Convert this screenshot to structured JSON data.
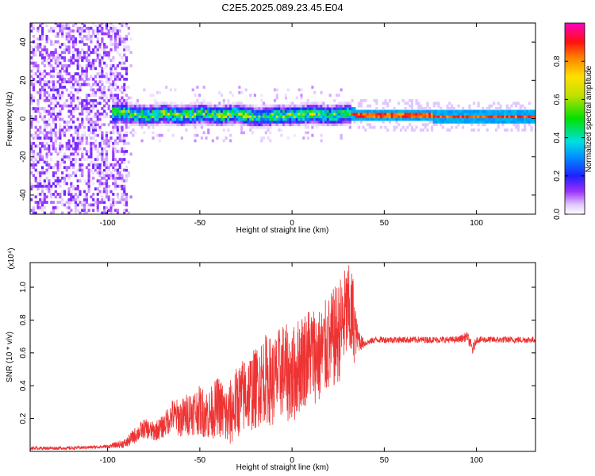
{
  "title": "C2E5.2025.089.23.45.E04",
  "chart_data": [
    {
      "type": "heatmap",
      "xlabel": "Height of straight line (km)",
      "ylabel": "Frequency (Hz)",
      "xlim": [
        -142,
        132
      ],
      "ylim": [
        -50,
        50
      ],
      "xticks": [
        "-100",
        "-50",
        "0",
        "50",
        "100"
      ],
      "xtick_values": [
        -100,
        -50,
        0,
        50,
        100
      ],
      "yticks": [
        "-40",
        "-20",
        "0",
        "20",
        "40"
      ],
      "ytick_values": [
        -40,
        -20,
        0,
        20,
        40
      ],
      "grid": false,
      "colorbar": {
        "label": "Normalized spectral amplitude",
        "ticks": [
          "0.0",
          "0.2",
          "0.4",
          "0.6",
          "0.8"
        ],
        "tick_values": [
          0.0,
          0.2,
          0.4,
          0.6,
          0.8
        ],
        "range": [
          0,
          1
        ],
        "colormap": "rainbow (violet to magenta)"
      },
      "regions": [
        {
          "x_range": [
            -142,
            -90
          ],
          "freq_range": [
            -50,
            50
          ],
          "amplitude": [
            0.0,
            0.15
          ],
          "description_values": "broadband noise"
        },
        {
          "x_range": [
            -98,
            30
          ],
          "freq_range": [
            -8,
            8
          ],
          "amplitude": [
            0.1,
            0.6
          ]
        },
        {
          "x_range": [
            30,
            132
          ],
          "freq_range": [
            -2,
            2
          ],
          "amplitude": [
            0.5,
            1.0
          ]
        }
      ],
      "ridge_x": [
        -100,
        -90,
        -80,
        -70,
        -60,
        -50,
        -40,
        -30,
        -20,
        -10,
        0,
        10,
        20,
        30,
        40,
        60,
        80,
        100,
        132
      ],
      "ridge_freq": [
        3,
        2,
        1,
        2,
        1,
        2,
        1,
        2,
        0,
        1,
        1,
        2,
        1,
        2,
        1,
        1,
        0.5,
        0.5,
        0.5
      ]
    },
    {
      "type": "line",
      "xlabel": "Height of straight line (km)",
      "ylabel": "SNR (10 * v/v)",
      "multiplier": "(x10⁴)",
      "xlim": [
        -142,
        132
      ],
      "ylim": [
        0,
        1.15
      ],
      "xticks": [
        "-100",
        "-50",
        "0",
        "50",
        "100"
      ],
      "xtick_values": [
        -100,
        -50,
        0,
        50,
        100
      ],
      "yticks": [
        "0.2",
        "0.4",
        "0.6",
        "0.8",
        "1.0"
      ],
      "ytick_values": [
        0.2,
        0.4,
        0.6,
        0.8,
        1.0
      ],
      "grid": false,
      "series": [
        {
          "color": "#ee3333",
          "x": [
            -142,
            -120,
            -100,
            -90,
            -85,
            -80,
            -75,
            -70,
            -65,
            -60,
            -55,
            -50,
            -45,
            -40,
            -35,
            -30,
            -25,
            -20,
            -15,
            -10,
            -5,
            0,
            5,
            10,
            15,
            20,
            25,
            30,
            33,
            35,
            38,
            40,
            45,
            50,
            60,
            70,
            80,
            90,
            95,
            98,
            100,
            110,
            120,
            132
          ],
          "y": [
            0.02,
            0.02,
            0.03,
            0.05,
            0.1,
            0.14,
            0.12,
            0.15,
            0.22,
            0.2,
            0.24,
            0.25,
            0.22,
            0.28,
            0.2,
            0.3,
            0.35,
            0.38,
            0.45,
            0.42,
            0.5,
            0.45,
            0.55,
            0.6,
            0.58,
            0.65,
            0.72,
            0.85,
            0.8,
            0.7,
            0.66,
            0.66,
            0.68,
            0.68,
            0.68,
            0.68,
            0.68,
            0.68,
            0.7,
            0.62,
            0.68,
            0.68,
            0.68,
            0.68
          ],
          "spread": [
            0.01,
            0.01,
            0.01,
            0.03,
            0.05,
            0.06,
            0.06,
            0.07,
            0.1,
            0.12,
            0.14,
            0.15,
            0.16,
            0.18,
            0.2,
            0.22,
            0.24,
            0.25,
            0.27,
            0.28,
            0.29,
            0.3,
            0.3,
            0.3,
            0.3,
            0.3,
            0.32,
            0.3,
            0.3,
            0.1,
            0.04,
            0.02,
            0.02,
            0.02,
            0.02,
            0.02,
            0.02,
            0.02,
            0.03,
            0.04,
            0.02,
            0.02,
            0.02,
            0.02
          ]
        }
      ]
    }
  ]
}
